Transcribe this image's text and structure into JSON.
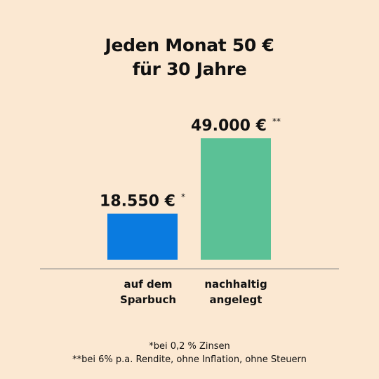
{
  "chart_data": {
    "type": "bar",
    "title_lines": [
      "Jeden Monat 50 €",
      "für 30 Jahre"
    ],
    "categories": [
      [
        "auf dem",
        "Sparbuch"
      ],
      [
        "nachhaltig",
        "angelegt"
      ]
    ],
    "values": [
      18550,
      49000
    ],
    "value_labels": [
      "18.550 €",
      "49.000 €"
    ],
    "value_marks": [
      "*",
      "**"
    ],
    "bar_colors": [
      "#0a7be0",
      "#5bc196"
    ],
    "ylim": [
      0,
      55000
    ],
    "grid": false,
    "legend": "none"
  },
  "footnotes": [
    "*bei 0,2 % Zinsen",
    "**bei 6% p.a. Rendite, ohne Inflation, ohne Steuern"
  ],
  "colors": {
    "background": "#fbe8d2",
    "baseline": "#8a8a8a",
    "text": "#111111"
  }
}
